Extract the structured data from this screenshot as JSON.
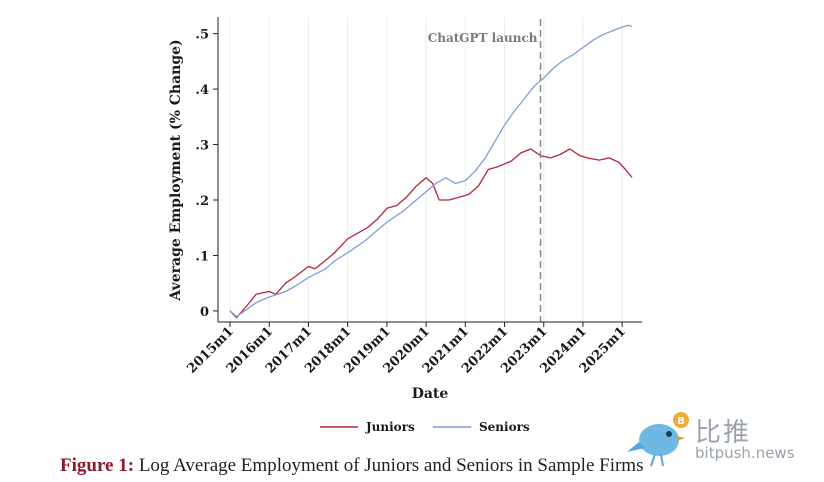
{
  "chart_data": {
    "type": "line",
    "ylabel": "Average Employment (% Change)",
    "xlabel": "Date",
    "x_ticks": [
      "2015m1",
      "2016m1",
      "2017m1",
      "2018m1",
      "2019m1",
      "2020m1",
      "2021m1",
      "2022m1",
      "2023m1",
      "2024m1",
      "2025m1"
    ],
    "y_ticks": [
      "0",
      ".1",
      ".2",
      ".3",
      ".4",
      ".5"
    ],
    "ylim": [
      -0.02,
      0.53
    ],
    "xlim": [
      "2015m1",
      "2025m4"
    ],
    "grid": "vertical",
    "annotation": {
      "label": "ChatGPT launch",
      "x": "2022m12"
    },
    "legend_position": "bottom",
    "series": [
      {
        "name": "Juniors",
        "color": "#b5263a",
        "points": [
          [
            "2015m1",
            0.0
          ],
          [
            "2015m3",
            -0.012
          ],
          [
            "2015m6",
            0.008
          ],
          [
            "2015m9",
            0.03
          ],
          [
            "2016m1",
            0.035
          ],
          [
            "2016m3",
            0.03
          ],
          [
            "2016m6",
            0.05
          ],
          [
            "2016m9",
            0.062
          ],
          [
            "2017m1",
            0.08
          ],
          [
            "2017m3",
            0.076
          ],
          [
            "2017m6",
            0.09
          ],
          [
            "2017m9",
            0.105
          ],
          [
            "2018m1",
            0.13
          ],
          [
            "2018m4",
            0.14
          ],
          [
            "2018m7",
            0.15
          ],
          [
            "2018m10",
            0.165
          ],
          [
            "2019m1",
            0.185
          ],
          [
            "2019m4",
            0.19
          ],
          [
            "2019m7",
            0.205
          ],
          [
            "2019m10",
            0.225
          ],
          [
            "2020m1",
            0.24
          ],
          [
            "2020m3",
            0.23
          ],
          [
            "2020m5",
            0.2
          ],
          [
            "2020m8",
            0.2
          ],
          [
            "2020m11",
            0.205
          ],
          [
            "2021m2",
            0.21
          ],
          [
            "2021m5",
            0.225
          ],
          [
            "2021m8",
            0.255
          ],
          [
            "2021m11",
            0.26
          ],
          [
            "2022m3",
            0.27
          ],
          [
            "2022m6",
            0.285
          ],
          [
            "2022m9",
            0.292
          ],
          [
            "2022m12",
            0.28
          ],
          [
            "2023m3",
            0.276
          ],
          [
            "2023m6",
            0.282
          ],
          [
            "2023m9",
            0.292
          ],
          [
            "2023m12",
            0.28
          ],
          [
            "2024m3",
            0.275
          ],
          [
            "2024m6",
            0.272
          ],
          [
            "2024m9",
            0.276
          ],
          [
            "2024m12",
            0.268
          ],
          [
            "2025m2",
            0.255
          ],
          [
            "2025m4",
            0.241
          ]
        ]
      },
      {
        "name": "Seniors",
        "color": "#7e9fd4",
        "points": [
          [
            "2015m1",
            0.0
          ],
          [
            "2015m3",
            -0.01
          ],
          [
            "2015m6",
            0.002
          ],
          [
            "2015m9",
            0.015
          ],
          [
            "2016m1",
            0.025
          ],
          [
            "2016m6",
            0.035
          ],
          [
            "2016m9",
            0.045
          ],
          [
            "2017m1",
            0.06
          ],
          [
            "2017m6",
            0.075
          ],
          [
            "2017m9",
            0.09
          ],
          [
            "2018m1",
            0.105
          ],
          [
            "2018m6",
            0.125
          ],
          [
            "2018m9",
            0.14
          ],
          [
            "2019m1",
            0.16
          ],
          [
            "2019m6",
            0.18
          ],
          [
            "2019m9",
            0.195
          ],
          [
            "2020m1",
            0.215
          ],
          [
            "2020m4",
            0.23
          ],
          [
            "2020m7",
            0.24
          ],
          [
            "2020m10",
            0.23
          ],
          [
            "2021m1",
            0.235
          ],
          [
            "2021m4",
            0.252
          ],
          [
            "2021m7",
            0.275
          ],
          [
            "2021m10",
            0.305
          ],
          [
            "2022m1",
            0.335
          ],
          [
            "2022m4",
            0.36
          ],
          [
            "2022m7",
            0.382
          ],
          [
            "2022m10",
            0.405
          ],
          [
            "2023m1",
            0.42
          ],
          [
            "2023m4",
            0.438
          ],
          [
            "2023m7",
            0.452
          ],
          [
            "2023m10",
            0.462
          ],
          [
            "2024m1",
            0.475
          ],
          [
            "2024m4",
            0.488
          ],
          [
            "2024m7",
            0.498
          ],
          [
            "2024m10",
            0.505
          ],
          [
            "2025m1",
            0.512
          ],
          [
            "2025m3",
            0.515
          ],
          [
            "2025m4",
            0.513
          ]
        ]
      }
    ]
  },
  "caption": {
    "label": "Figure 1:",
    "text": " Log Average Employment of Juniors and Seniors in Sample Firms"
  },
  "watermark": {
    "cn": "比推",
    "en": "bitpush.news"
  },
  "colors": {
    "caption_label": "#8b1a2b",
    "grid": "#ececec",
    "annotation_line": "#888888"
  }
}
